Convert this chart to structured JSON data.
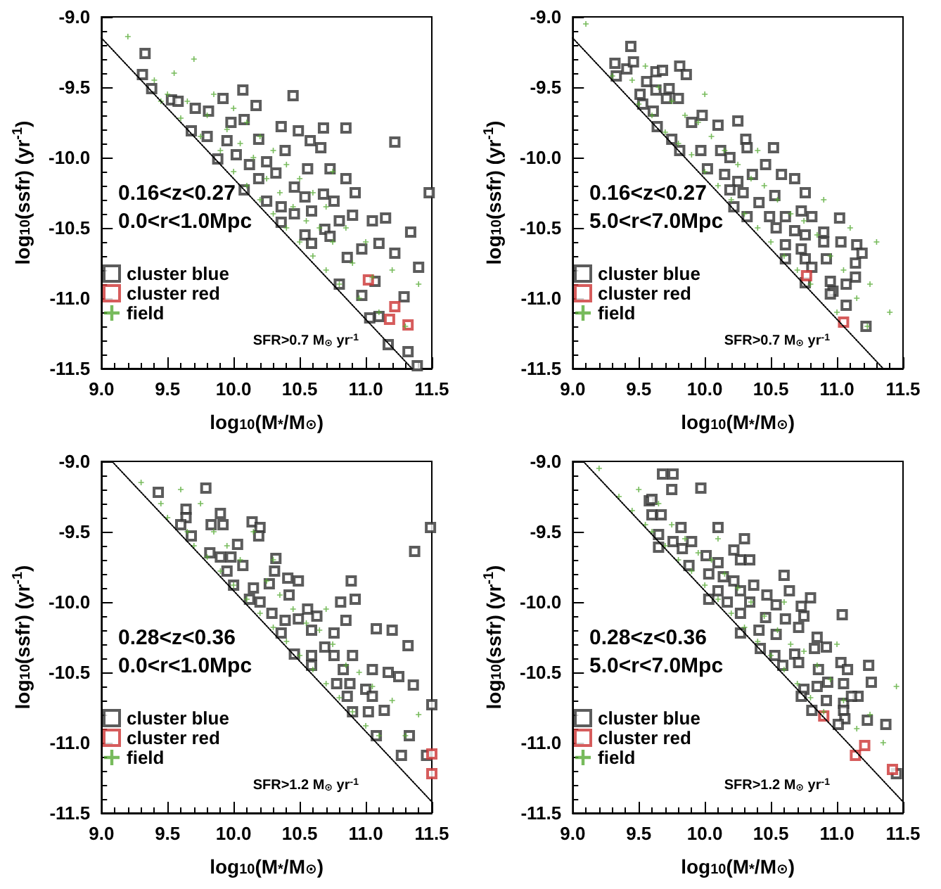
{
  "chart_data": [
    {
      "type": "scatter",
      "xlabel": "log$_{10}$(M$_{*}$/M$_{⊙}$)",
      "ylabel": "log$_{10}$(ssfr) (yr$^{-1}$)",
      "xlim": [
        9.0,
        11.5
      ],
      "ylim": [
        -11.5,
        -9.0
      ],
      "xticks": [
        {
          "value": 9,
          "label": "9.0"
        },
        {
          "value": 9.5,
          "label": "9.5"
        },
        {
          "value": 10,
          "label": "10.0"
        },
        {
          "value": 10.5,
          "label": "10.5"
        },
        {
          "value": 11,
          "label": "11.0"
        },
        {
          "value": 11.5,
          "label": "11.5"
        }
      ],
      "yticks": [
        {
          "value": -11.5,
          "label": "-11.5"
        },
        {
          "value": -11,
          "label": "-11.0"
        },
        {
          "value": -10.5,
          "label": "-10.5"
        },
        {
          "value": -10,
          "label": "-10.0"
        },
        {
          "value": -9.5,
          "label": "-9.5"
        },
        {
          "value": -9,
          "label": "-9.0"
        }
      ],
      "legend": "bottom left",
      "annotations": [
        "0.16<z<0.27",
        "0.0<r<1.0Mpc",
        "SFR>0.7 M$_{⊙}$ yr$^{-1}$"
      ],
      "series": [
        {
          "name": "cluster blue",
          "color": "#333333",
          "marker": "square",
          "x": [
            9.33,
            9.31,
            9.38,
            9.53,
            9.58,
            9.71,
            9.81,
            9.92,
            10.07,
            10.17,
            10.45,
            9.68,
            9.8,
            9.98,
            10.08,
            10.19,
            10.36,
            10.49,
            10.68,
            10.85,
            11.22,
            9.88,
            10.02,
            10.12,
            10.25,
            10.39,
            10.58,
            10.66,
            10.08,
            10.19,
            10.32,
            10.46,
            10.56,
            10.73,
            10.85,
            10.25,
            10.36,
            10.46,
            10.59,
            10.68,
            10.76,
            10.92,
            10.36,
            10.54,
            10.69,
            10.8,
            10.9,
            11.05,
            11.15,
            10.59,
            10.73,
            10.86,
            10.97,
            11.1,
            11.22,
            11.34,
            10.8,
            10.97,
            11.07,
            11.1,
            11.29,
            11.4,
            11.03,
            11.17,
            11.32,
            11.39,
            11.48,
            10.54,
            9.95
          ],
          "values": [
            -9.26,
            -9.41,
            -9.51,
            -9.59,
            -9.6,
            -9.65,
            -9.67,
            -9.58,
            -9.52,
            -9.63,
            -9.56,
            -9.81,
            -9.85,
            -9.75,
            -9.73,
            -9.87,
            -9.78,
            -9.81,
            -9.79,
            -9.79,
            -9.89,
            -10.01,
            -9.98,
            -10.05,
            -10.03,
            -9.95,
            -9.88,
            -9.93,
            -10.23,
            -10.15,
            -10.11,
            -10.21,
            -10.08,
            -10.08,
            -10.15,
            -10.31,
            -10.35,
            -10.4,
            -10.38,
            -10.26,
            -10.31,
            -10.25,
            -10.46,
            -10.55,
            -10.51,
            -10.45,
            -10.41,
            -10.45,
            -10.43,
            -10.61,
            -10.56,
            -10.71,
            -10.65,
            -10.61,
            -10.68,
            -10.53,
            -10.9,
            -10.98,
            -10.88,
            -11.13,
            -10.99,
            -10.78,
            -11.14,
            -11.33,
            -11.38,
            -11.48,
            -10.25,
            -10.28,
            -9.88
          ]
        },
        {
          "name": "cluster red",
          "color": "#cc3333",
          "marker": "square",
          "x": [
            11.02,
            11.22,
            11.18,
            11.32
          ],
          "values": [
            -10.87,
            -11.06,
            -11.15,
            -11.19
          ]
        },
        {
          "name": "field",
          "color": "#55aa33",
          "marker": "cross",
          "x": [
            9.2,
            9.4,
            9.5,
            9.55,
            9.6,
            9.65,
            9.7,
            9.75,
            9.8,
            9.85,
            9.9,
            9.95,
            10.0,
            10.0,
            10.05,
            10.1,
            10.1,
            10.15,
            10.2,
            10.2,
            10.25,
            10.3,
            10.3,
            10.35,
            10.4,
            10.4,
            10.45,
            10.5,
            10.5,
            10.55,
            10.6,
            10.6,
            10.65,
            10.7,
            10.7,
            10.75,
            10.8,
            10.85,
            10.9,
            10.95,
            11.0,
            11.05,
            11.1,
            11.2,
            11.3,
            11.4,
            9.45,
            10.75
          ],
          "values": [
            -9.14,
            -9.45,
            -9.55,
            -9.4,
            -9.72,
            -9.6,
            -9.3,
            -9.85,
            -9.7,
            -9.55,
            -9.95,
            -9.8,
            -9.65,
            -10.1,
            -9.9,
            -10.2,
            -9.75,
            -10.0,
            -10.3,
            -9.85,
            -10.15,
            -10.4,
            -9.95,
            -10.25,
            -10.5,
            -10.05,
            -10.35,
            -10.6,
            -10.15,
            -10.45,
            -10.7,
            -10.25,
            -10.5,
            -10.8,
            -10.35,
            -10.6,
            -10.9,
            -10.5,
            -10.75,
            -11.0,
            -10.6,
            -10.85,
            -11.1,
            -10.8,
            -11.2,
            -10.9,
            -9.6,
            -10.1
          ]
        },
        {
          "type": "line",
          "color": "#000000",
          "line_style": "dotted",
          "marker": "none",
          "x": [
            9.0,
            11.35
          ],
          "values": [
            -9.15,
            -11.5
          ]
        }
      ]
    },
    {
      "type": "scatter",
      "xlabel": "log$_{10}$(M$_{*}$/M$_{⊙}$)",
      "ylabel": "log$_{10}$(ssfr) (yr$^{-1}$)",
      "xlim": [
        9.0,
        11.5
      ],
      "ylim": [
        -11.5,
        -9.0
      ],
      "xticks": [
        {
          "value": 9,
          "label": "9.0"
        },
        {
          "value": 9.5,
          "label": "9.5"
        },
        {
          "value": 10,
          "label": "10.0"
        },
        {
          "value": 10.5,
          "label": "10.5"
        },
        {
          "value": 11,
          "label": "11.0"
        },
        {
          "value": 11.5,
          "label": "11.5"
        }
      ],
      "yticks": [
        {
          "value": -11.5,
          "label": "-11.5"
        },
        {
          "value": -11,
          "label": "-11.0"
        },
        {
          "value": -10.5,
          "label": "-10.5"
        },
        {
          "value": -10,
          "label": "-10.0"
        },
        {
          "value": -9.5,
          "label": "-9.5"
        },
        {
          "value": -9,
          "label": "-9.0"
        }
      ],
      "legend": "bottom left",
      "annotations": [
        "0.16<z<0.27",
        "5.0<r<7.0Mpc",
        "SFR>0.7 M$_{⊙}$ yr$^{-1}$"
      ],
      "series": [
        {
          "name": "cluster blue",
          "color": "#333333",
          "marker": "square",
          "x": [
            9.44,
            9.32,
            9.33,
            9.41,
            9.46,
            9.63,
            9.68,
            9.81,
            9.86,
            9.56,
            9.63,
            9.73,
            9.51,
            9.53,
            9.61,
            9.71,
            9.8,
            9.64,
            9.75,
            9.9,
            9.98,
            10.1,
            10.25,
            10.31,
            9.81,
            9.97,
            10.12,
            10.19,
            10.32,
            10.52,
            10.02,
            10.15,
            10.25,
            10.36,
            10.46,
            10.58,
            10.68,
            10.19,
            10.29,
            10.41,
            10.53,
            10.76,
            10.22,
            10.32,
            10.49,
            10.61,
            10.73,
            10.81,
            10.54,
            10.68,
            10.76,
            10.9,
            11.02,
            10.61,
            10.73,
            10.9,
            11.03,
            11.15,
            10.61,
            10.76,
            10.92,
            11.19,
            11.14,
            10.81,
            11.14,
            10.95,
            10.76,
            10.97,
            11.07,
            10.95,
            11.07,
            11.22
          ],
          "values": [
            -9.21,
            -9.33,
            -9.42,
            -9.37,
            -9.32,
            -9.39,
            -9.38,
            -9.35,
            -9.41,
            -9.46,
            -9.52,
            -9.51,
            -9.55,
            -9.62,
            -9.67,
            -9.58,
            -9.58,
            -9.78,
            -9.87,
            -9.75,
            -9.7,
            -9.77,
            -9.74,
            -9.87,
            -9.95,
            -9.95,
            -9.95,
            -10.0,
            -9.93,
            -9.93,
            -10.08,
            -10.12,
            -10.17,
            -10.12,
            -10.05,
            -10.12,
            -10.15,
            -10.23,
            -10.25,
            -10.32,
            -10.27,
            -10.25,
            -10.35,
            -10.42,
            -10.42,
            -10.42,
            -10.38,
            -10.42,
            -10.5,
            -10.52,
            -10.55,
            -10.53,
            -10.43,
            -10.62,
            -10.65,
            -10.6,
            -10.6,
            -10.62,
            -10.72,
            -10.72,
            -10.72,
            -10.68,
            -10.75,
            -10.78,
            -10.85,
            -10.88,
            -10.89,
            -10.95,
            -10.9,
            -10.97,
            -11.05,
            -11.2
          ]
        },
        {
          "name": "cluster red",
          "color": "#cc3333",
          "marker": "square",
          "x": [
            10.77,
            11.05
          ],
          "values": [
            -10.84,
            -11.17
          ]
        },
        {
          "name": "field",
          "color": "#55aa33",
          "marker": "cross",
          "x": [
            9.1,
            9.3,
            9.45,
            9.5,
            9.55,
            9.6,
            9.65,
            9.7,
            9.75,
            9.8,
            9.85,
            9.9,
            9.95,
            10.0,
            10.05,
            10.1,
            10.15,
            10.2,
            10.25,
            10.3,
            10.35,
            10.4,
            10.45,
            10.5,
            10.55,
            10.6,
            10.65,
            10.7,
            10.75,
            10.8,
            10.85,
            10.9,
            10.95,
            11.0,
            11.05,
            11.1,
            11.15,
            11.25,
            11.3,
            11.4,
            11.23,
            10.0,
            10.4
          ],
          "values": [
            -9.05,
            -9.42,
            -9.45,
            -9.62,
            -9.35,
            -9.7,
            -9.5,
            -9.82,
            -9.6,
            -9.9,
            -9.7,
            -9.98,
            -9.75,
            -10.1,
            -9.85,
            -10.2,
            -9.95,
            -10.3,
            -10.05,
            -10.4,
            -10.15,
            -10.5,
            -10.2,
            -10.6,
            -10.3,
            -10.7,
            -10.4,
            -10.8,
            -10.45,
            -10.9,
            -10.55,
            -10.3,
            -10.7,
            -11.1,
            -10.8,
            -10.5,
            -11.0,
            -10.9,
            -10.6,
            -11.1,
            -11.2,
            -9.55,
            -9.95
          ]
        },
        {
          "type": "line",
          "color": "#000000",
          "line_style": "dotted",
          "marker": "none",
          "x": [
            9.0,
            11.35
          ],
          "values": [
            -9.15,
            -11.5
          ]
        }
      ]
    },
    {
      "type": "scatter",
      "xlabel": "log$_{10}$(M$_{*}$/M$_{⊙}$)",
      "ylabel": "log$_{10}$(ssfr) (yr$^{-1}$)",
      "xlim": [
        9.0,
        11.5
      ],
      "ylim": [
        -11.5,
        -9.0
      ],
      "xticks": [
        {
          "value": 9,
          "label": "9.0"
        },
        {
          "value": 9.5,
          "label": "9.5"
        },
        {
          "value": 10,
          "label": "10.0"
        },
        {
          "value": 10.5,
          "label": "10.5"
        },
        {
          "value": 11,
          "label": "11.0"
        },
        {
          "value": 11.5,
          "label": "11.5"
        }
      ],
      "yticks": [
        {
          "value": -11.5,
          "label": "-11.5"
        },
        {
          "value": -11,
          "label": "-11.0"
        },
        {
          "value": -10.5,
          "label": "-10.5"
        },
        {
          "value": -10,
          "label": "-10.0"
        },
        {
          "value": -9.5,
          "label": "-9.5"
        },
        {
          "value": -9,
          "label": "-9.0"
        }
      ],
      "legend": "bottom left",
      "annotations": [
        "0.28<z<0.36",
        "0.0<r<1.0Mpc",
        "SFR>1.2 M$_{⊙}$ yr$^{-1}$"
      ],
      "series": [
        {
          "name": "cluster blue",
          "color": "#333333",
          "marker": "square",
          "x": [
            9.43,
            9.79,
            9.64,
            9.9,
            9.64,
            9.6,
            9.83,
            9.92,
            10.14,
            10.2,
            10.19,
            9.68,
            10.03,
            9.82,
            9.9,
            9.98,
            10.32,
            11.37,
            11.49,
            9.95,
            10.07,
            10.31,
            10.41,
            10.49,
            10.0,
            10.15,
            10.27,
            10.89,
            10.12,
            10.2,
            10.42,
            10.56,
            10.81,
            10.92,
            10.29,
            10.39,
            10.49,
            10.63,
            10.85,
            10.36,
            10.59,
            10.76,
            11.08,
            11.2,
            11.32,
            10.46,
            10.59,
            10.69,
            10.76,
            10.9,
            10.59,
            10.83,
            11.05,
            11.17,
            10.78,
            10.88,
            11.0,
            11.25,
            11.36,
            10.86,
            11.05,
            10.9,
            11.14,
            11.02,
            11.08,
            11.33,
            11.27,
            11.46,
            11.5
          ],
          "values": [
            -9.22,
            -9.19,
            -9.34,
            -9.37,
            -9.4,
            -9.45,
            -9.45,
            -9.45,
            -9.43,
            -9.47,
            -9.53,
            -9.53,
            -9.59,
            -9.65,
            -9.68,
            -9.68,
            -9.69,
            -9.64,
            -9.47,
            -9.78,
            -9.74,
            -9.78,
            -9.83,
            -9.85,
            -9.88,
            -9.9,
            -9.87,
            -9.85,
            -9.98,
            -10.0,
            -9.95,
            -10.05,
            -10.0,
            -9.98,
            -10.08,
            -10.13,
            -10.12,
            -10.1,
            -10.13,
            -10.22,
            -10.2,
            -10.22,
            -10.19,
            -10.2,
            -10.31,
            -10.37,
            -10.38,
            -10.32,
            -10.38,
            -10.38,
            -10.45,
            -10.48,
            -10.48,
            -10.5,
            -10.58,
            -10.58,
            -10.62,
            -10.53,
            -10.59,
            -10.67,
            -10.67,
            -10.78,
            -10.77,
            -10.78,
            -10.95,
            -10.95,
            -11.09,
            -11.09,
            -10.73
          ]
        },
        {
          "name": "cluster red",
          "color": "#cc3333",
          "marker": "square",
          "x": [
            11.5,
            11.5
          ],
          "values": [
            -11.08,
            -11.22
          ]
        },
        {
          "name": "field",
          "color": "#55aa33",
          "marker": "cross",
          "x": [
            9.3,
            9.45,
            9.5,
            9.6,
            9.65,
            9.7,
            9.75,
            9.8,
            9.85,
            9.9,
            9.95,
            10.0,
            10.05,
            10.1,
            10.15,
            10.2,
            10.25,
            10.3,
            10.35,
            10.4,
            10.45,
            10.5,
            10.55,
            10.6,
            10.65,
            10.7,
            10.75,
            10.8,
            10.85,
            10.9,
            10.95,
            11.0,
            11.05,
            11.1,
            11.2,
            11.3,
            11.4,
            10.3,
            10.7
          ],
          "values": [
            -9.15,
            -9.3,
            -9.4,
            -9.2,
            -9.5,
            -9.6,
            -9.3,
            -9.68,
            -9.5,
            -9.78,
            -9.6,
            -9.88,
            -9.7,
            -9.98,
            -9.5,
            -10.08,
            -9.85,
            -10.18,
            -9.95,
            -10.28,
            -10.05,
            -10.38,
            -10.15,
            -10.48,
            -10.2,
            -10.58,
            -10.3,
            -10.68,
            -10.45,
            -10.78,
            -10.5,
            -10.88,
            -10.6,
            -10.95,
            -10.7,
            -10.95,
            -10.8,
            -9.7,
            -10.05
          ]
        },
        {
          "type": "line",
          "color": "#000000",
          "line_style": "dotted",
          "marker": "none",
          "x": [
            9.08,
            11.5
          ],
          "values": [
            -9.0,
            -11.42
          ]
        }
      ]
    },
    {
      "type": "scatter",
      "xlabel": "log$_{10}$(M$_{*}$/M$_{⊙}$)",
      "ylabel": "log$_{10}$(ssfr) (yr$^{-1}$)",
      "xlim": [
        9.0,
        11.5
      ],
      "ylim": [
        -11.5,
        -9.0
      ],
      "xticks": [
        {
          "value": 9,
          "label": "9.0"
        },
        {
          "value": 9.5,
          "label": "9.5"
        },
        {
          "value": 10,
          "label": "10.0"
        },
        {
          "value": 10.5,
          "label": "10.5"
        },
        {
          "value": 11,
          "label": "11.0"
        },
        {
          "value": 11.5,
          "label": "11.5"
        }
      ],
      "yticks": [
        {
          "value": -11.5,
          "label": "-11.5"
        },
        {
          "value": -11,
          "label": "-11.0"
        },
        {
          "value": -10.5,
          "label": "-10.5"
        },
        {
          "value": -10,
          "label": "-10.0"
        },
        {
          "value": -9.5,
          "label": "-9.5"
        },
        {
          "value": -9,
          "label": "-9.0"
        }
      ],
      "legend": "bottom left",
      "annotations": [
        "0.28<z<0.36",
        "5.0<r<7.0Mpc",
        "SFR>1.2 M$_{⊙}$ yr$^{-1}$"
      ],
      "series": [
        {
          "name": "cluster blue",
          "color": "#333333",
          "marker": "square",
          "x": [
            9.68,
            9.76,
            9.75,
            9.97,
            9.58,
            9.6,
            9.6,
            9.67,
            9.82,
            10.1,
            9.65,
            9.76,
            9.65,
            9.83,
            9.9,
            10.3,
            10.22,
            10.01,
            10.1,
            10.27,
            10.34,
            9.88,
            10.03,
            10.14,
            10.6,
            10.22,
            10.37,
            10.1,
            10.27,
            10.47,
            10.64,
            10.8,
            10.03,
            10.17,
            10.34,
            10.54,
            10.73,
            10.27,
            10.46,
            10.61,
            10.75,
            11.04,
            10.27,
            10.41,
            10.54,
            10.71,
            10.85,
            10.42,
            10.53,
            10.68,
            10.83,
            10.92,
            10.59,
            10.71,
            10.86,
            11.03,
            11.08,
            11.24,
            10.75,
            10.85,
            10.93,
            11.05,
            11.16,
            11.26,
            10.73,
            10.92,
            11.05,
            10.81,
            11.05,
            11.11,
            11.06,
            11.01,
            11.23,
            11.37,
            11.45
          ],
          "values": [
            -9.09,
            -9.09,
            -9.2,
            -9.19,
            -9.28,
            -9.27,
            -9.38,
            -9.38,
            -9.47,
            -9.47,
            -9.52,
            -9.57,
            -9.61,
            -9.62,
            -9.57,
            -9.55,
            -9.63,
            -9.67,
            -9.72,
            -9.7,
            -9.7,
            -9.74,
            -9.8,
            -9.82,
            -9.81,
            -9.85,
            -9.88,
            -9.92,
            -9.92,
            -9.95,
            -9.92,
            -9.97,
            -9.98,
            -10.0,
            -10.0,
            -10.02,
            -10.03,
            -10.08,
            -10.11,
            -10.12,
            -10.1,
            -10.09,
            -10.22,
            -10.2,
            -10.23,
            -10.18,
            -10.25,
            -10.33,
            -10.38,
            -10.37,
            -10.33,
            -10.32,
            -10.45,
            -10.43,
            -10.48,
            -10.43,
            -10.48,
            -10.45,
            -10.62,
            -10.6,
            -10.57,
            -10.58,
            -10.67,
            -10.57,
            -10.67,
            -10.7,
            -10.72,
            -10.77,
            -10.77,
            -10.67,
            -10.83,
            -10.87,
            -10.84,
            -10.87,
            -11.22
          ]
        },
        {
          "name": "cluster red",
          "color": "#cc3333",
          "marker": "square",
          "x": [
            10.9,
            11.14,
            11.21,
            11.42
          ],
          "values": [
            -10.81,
            -11.09,
            -11.02,
            -11.19
          ]
        },
        {
          "name": "field",
          "color": "#55aa33",
          "marker": "cross",
          "x": [
            9.2,
            9.35,
            9.45,
            9.5,
            9.55,
            9.6,
            9.65,
            9.7,
            9.75,
            9.8,
            9.85,
            9.9,
            9.95,
            10.0,
            10.05,
            10.1,
            10.15,
            10.2,
            10.25,
            10.3,
            10.35,
            10.4,
            10.45,
            10.5,
            10.55,
            10.6,
            10.65,
            10.7,
            10.75,
            10.8,
            10.85,
            10.9,
            10.95,
            11.0,
            11.05,
            11.15,
            11.25,
            11.35,
            11.45,
            10.1,
            10.6
          ],
          "values": [
            -9.05,
            -9.25,
            -9.35,
            -9.2,
            -9.45,
            -9.5,
            -9.3,
            -9.6,
            -9.45,
            -9.7,
            -9.55,
            -9.78,
            -9.65,
            -9.88,
            -9.7,
            -9.98,
            -9.8,
            -10.08,
            -9.9,
            -10.18,
            -10.0,
            -10.28,
            -10.1,
            -10.38,
            -10.2,
            -10.48,
            -10.3,
            -10.58,
            -10.35,
            -10.68,
            -10.45,
            -10.78,
            -10.55,
            -10.3,
            -10.7,
            -10.9,
            -10.8,
            -11.0,
            -10.6,
            -9.55,
            -10.0
          ]
        },
        {
          "type": "line",
          "color": "#000000",
          "line_style": "dotted",
          "marker": "none",
          "x": [
            9.08,
            11.5
          ],
          "values": [
            -9.0,
            -11.42
          ]
        }
      ]
    }
  ]
}
